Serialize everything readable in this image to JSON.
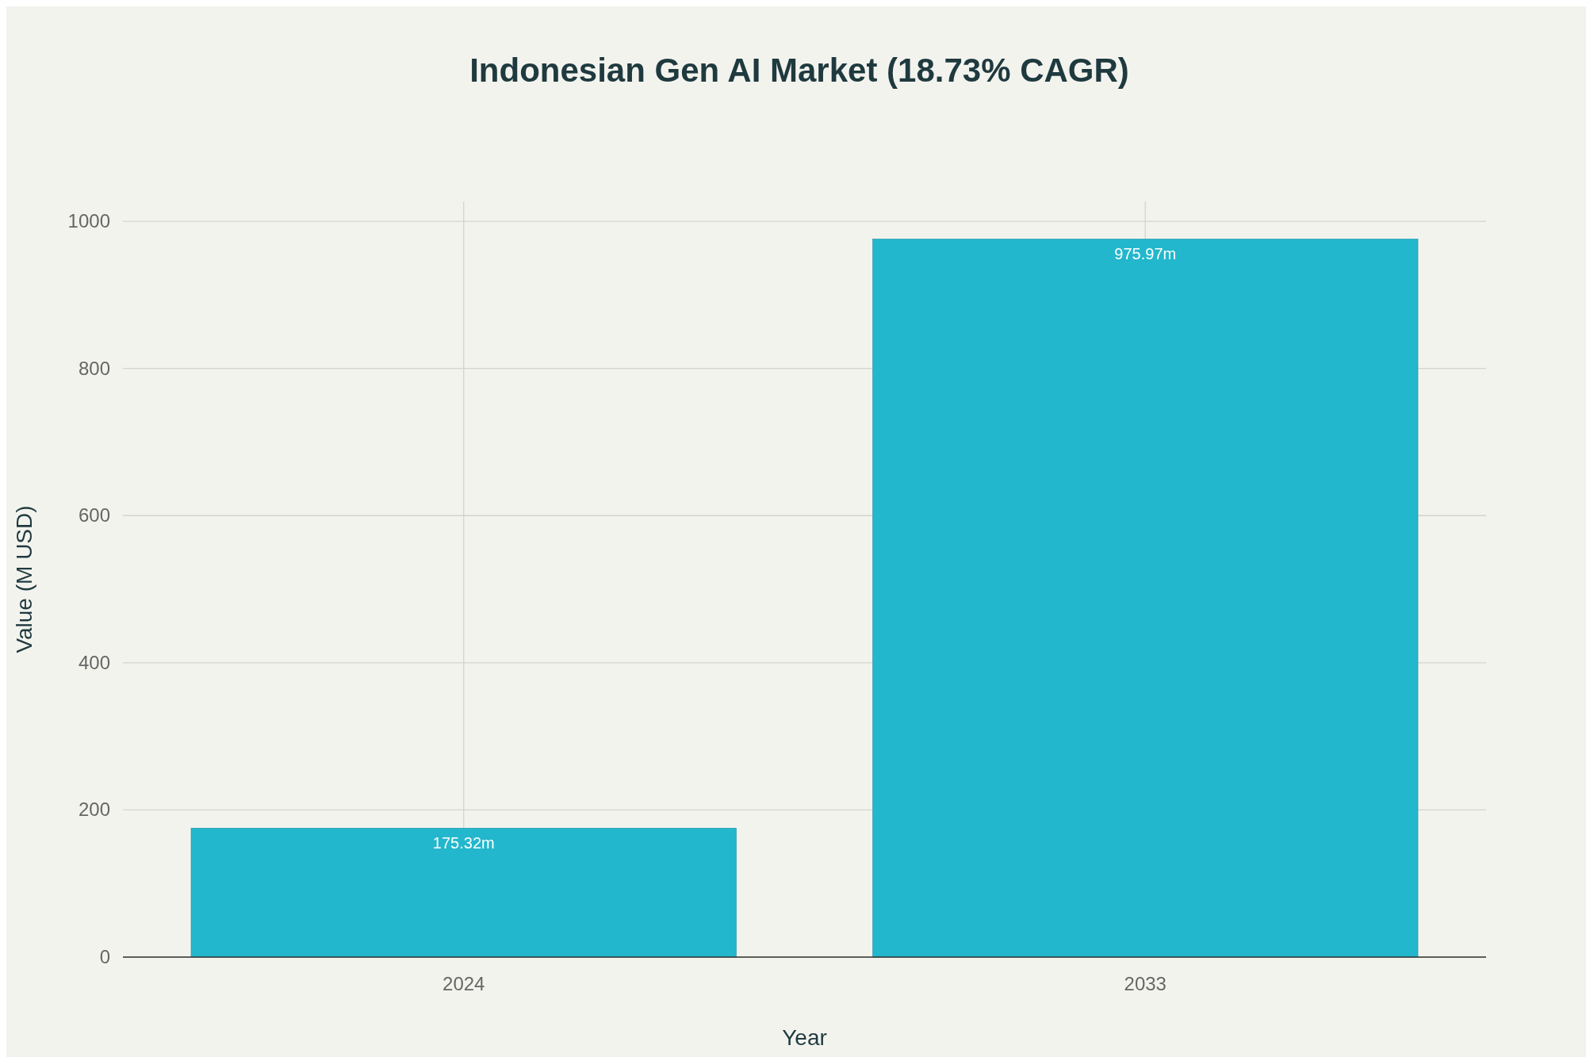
{
  "chart_data": {
    "type": "bar",
    "title": "Indonesian Gen AI Market (18.73% CAGR)",
    "xlabel": "Year",
    "ylabel": "Value (M USD)",
    "categories": [
      "2024",
      "2033"
    ],
    "values": [
      175.32,
      975.97
    ],
    "value_labels": [
      "175.32m",
      "975.97m"
    ],
    "color": "#22b7cc",
    "ylim": [
      0,
      1027
    ],
    "yticks": [
      0,
      200,
      400,
      600,
      800,
      1000
    ],
    "grid": true
  }
}
